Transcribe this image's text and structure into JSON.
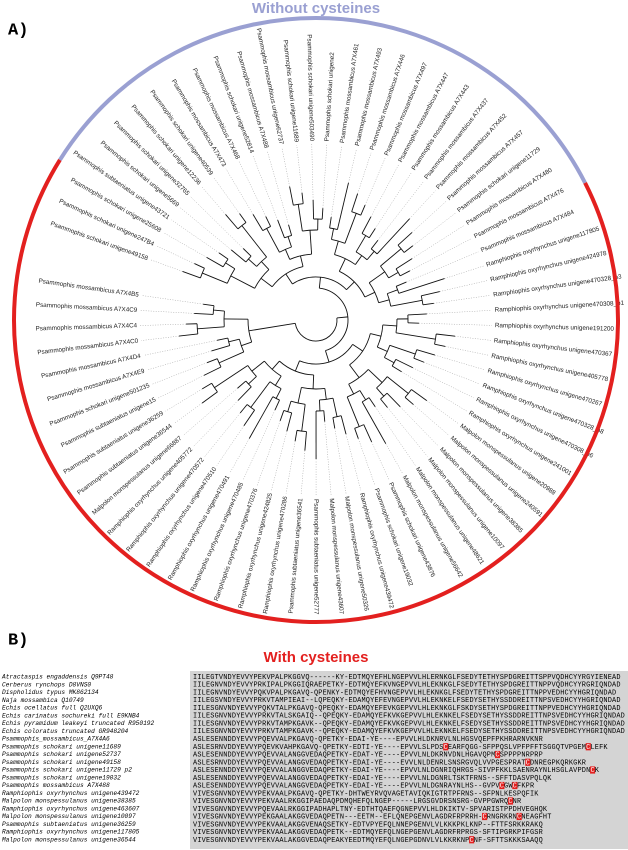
{
  "panel_a": {
    "label": "A)",
    "top_group": "Without cysteines",
    "bottom_group": "With cysteines",
    "leaves": [
      "Psammophis schokari unigene49158",
      "Psammophis schokari unigene247B4",
      "Psammophis schokari unigene25608",
      "Psammophis subtaeniatus unigene43721",
      "Psammophis schokari unigene5669",
      "Psammophis schokari unigene32765",
      "Psammophis schokari unigene12236",
      "Psammophis schokari unigene40539",
      "Psammophis mossambicus A7X473",
      "Psammophis mossambicus A7X468",
      "Psammophis schokari unigene52814",
      "Psammophis mossambicus A7X488",
      "Psammophis mossambicus unigene62737",
      "Psammophis schokari unigene11689",
      "Psammophis schokari unigene503490",
      "Psammophis schokari unigene2",
      "Psammophis mossambicus A7X461",
      "Psammophis mossambicus A7X493",
      "Psammophis mossambicus A7X446",
      "Psammophis mossambicus A7X497",
      "Psammophis mossambicus A7X447",
      "Psammophis mossambicus A7X443",
      "Psammophis mossambicus A7X437",
      "Psammophis mossambicus A7X452",
      "Psammophis mossambicus A7X457",
      "Psammophis schokari unigene11729",
      "Psammophis mossambicus A7X480",
      "Psammophis mossambicus A7X476",
      "Psammophis mossambicus A7X484",
      "Ramphiophis oxyrhynchus unigene117805",
      "Ramphiophis oxyrhynchus unigene424978",
      "Ramphiophis oxyrhynchus unigene470328_p3",
      "Ramphiophis oxyrhynchus unigene470308_p1",
      "Ramphiophis oxyrhynchus unigene191200",
      "Ramphiophis oxyrhynchus unigene470367",
      "Ramphiophis oxyrhynchus unigene405778",
      "Ramphiophis oxyrhynchus unigene470267",
      "Ramphiophis oxyrhynchus unigene470328_p8",
      "Ramphiophis oxyrhynchus unigene470308_p6",
      "Ramphiophis oxyrhynchus unigene241001",
      "Malpolon monspessulanus unigene20988",
      "Malpolon monspessulanus unigene240591",
      "Malpolon monspessulanus unigene38385",
      "Malpolon monspessulanus unigene10097",
      "Malpolon monspessulanus unigene48621",
      "Malpolon monspessulanus unigene56642",
      "Psammophis schokari unigene43876",
      "Psammophis schokari unigene19032",
      "Ramphiophis oxyrhynchus unigene439472",
      "Malpolon monspessulanus unigene50326",
      "Malpolon monspessulanus unigene43607",
      "Psammophis subtaeniatus unigene52777",
      "Psammophis subtaeniatus unigene36541",
      "Ramphiophis oxyrhynchus unigene470286",
      "Ramphiophis oxyrhynchus unigene424825",
      "Ramphiophis oxyrhynchus unigene470376",
      "Ramphiophis oxyrhynchus unigene470485",
      "Ramphiophis oxyrhynchus unigene470491",
      "Ramphiophis oxyrhynchus unigene470510",
      "Ramphiophis oxyrhynchus unigene470572",
      "Ramphiophis oxyrhynchus unigene405772",
      "Malpolon monspessulanus unigene66887",
      "Psammophis subtaeniatus unigene36544",
      "Psammophis subtaeniatus unigene36259",
      "Psammophis subtaeniatus unigene15",
      "Psammophis schokari unigene501235",
      "Psammophis mossambicus A7X4E9",
      "Psammophis mossambicus A7X4D4",
      "Psammophis mossambicus A7X4C0",
      "Psammophis mossambicus A7X4C4",
      "Psammophis mossambicus A7X4C9",
      "Psammophis mossambicus A7X4B5"
    ]
  },
  "panel_b": {
    "label": "B)",
    "rows": [
      {
        "name": "Atractaspis engaddensis Q9PT48",
        "sequence": "IILEGTVNDYEVVYPEKVPALPKGGVQ------KY-EDTMQYEFHLNGEPVVLHLERNKGLFSEDYTETHYSPDGREITTSPPVQDHCYYRGYIENEAD"
      },
      {
        "name": "Cerberus rynchops D8VNS0",
        "sequence": "IILEGNVNDYEVVYPRKIPALPKGGIQRAEPETKY-EDTMQYEFKVNGEPVVLHLEKNKGLFSEDYTETHYSPDGREITTNPPVQDHCYYRGRIQNDAD"
      },
      {
        "name": "Dispholidus typus MK862134",
        "sequence": "IILEGNVNDYEVVYPQKVPALPKGAVQ-QPENKY-EDTMQYEFHVNGEPVVLHLEKNKGLFSEDYTETHYSPDGREITTNPPVEDHCYYHGRIQNDAD"
      },
      {
        "name": "Naja mossambica Q10749",
        "sequence": "IILEGSVNDYEVVYPRKVTAMPIEAI--LQPEQKY-EDAMQYEFEVNGEPVVLHLEKNKELFSEDYSETHYSSDDREITTNPSVEDHCYYHGRIQNDAD"
      },
      {
        "name": "Echis ocellatus full Q2UXQ6",
        "sequence": "IILESGNVNDYEVVYPQKVTALPKGAVQ-QPEQKY-EDAMQYEFEVKGEPVVLHLEKNKGLFSKDYSETHYSPDGREITTNPPVEDHCYYHGRIQNDAD"
      },
      {
        "name": "Echis carinatus sochureki full E9KNB4",
        "sequence": "IILESGNVNDYEVVYPRKVTALSKGAIQ--QPEQKY-EDAMQYEFKVKGEPVVLHLEKNKELFSEDYSETHYSSDDREITTNPSVEDHCYYHGRIQNDAD"
      },
      {
        "name": "Echis pyramidum leakeyi truncated R950192",
        "sequence": "IILESGNVNDYEVVYPRKVTAMPKGAVK--QPEQKY-EDAMQYEFKVKGEPVVLHLEKNKELFSEDYSETHYSSDDREITTNPSVEDHCYYHGRIQNDAD"
      },
      {
        "name": "Echis coloratus truncated GR948204",
        "sequence": "IILESGNVNDYEVVYPRKVTAMPKGAVK--QPEQKY-EDAMQYEFKVKGEPVVLHLEKNKELFSEDYSETHYSSDDREITTNPSVEDHCYYHGRIQNDAD"
      },
      {
        "name": "Psammophis_mossambicus_A7X4A6",
        "sequence": "ASLESENNDDYEVVYPQEVVALPKGAVQ-QPETKY-EDAI-YE----EPVVLHLDKNRVLNLHGSVQEPFPKHRARNVKNR"
      },
      {
        "name": "Psammophis schokari unigene11689",
        "sequence": "ASLESRNVDDYEVVYPQEVKVAHPKGAVQ-QPETKY-EDTI-YE----EPVVLSLPDSCEARFQGG-SFPPQSLVPFPFFTSGGQTVPGEMCLEFK"
      },
      {
        "name": "Psammophis schokari unigene52737",
        "sequence": "ASLESENNDDYEVVYPQEVVALANGGVEDAQPETKY-EDAT-YE----EPVVLNLDKRNVDNLHGAVQPMCSPPPPNRPRP"
      },
      {
        "name": "Psammophis schokari unigene49158",
        "sequence": "ASLESRNVDDYEVVYPQEVVALANGGVEDAQPETKY-EDAI-YE----EVVLNLDENRLSNSRGVQLVVPGESPRATCDNREGPKQRKGKR"
      },
      {
        "name": "Psammophis schokari unigene11729 p2",
        "sequence": "ASLESENNDDYEVVYPQEVVALANGGVEDAQPETKY-EDAI-YE----EPVVLNLDGNRIQHRGS-SIVPFKKLSAENRAYNLHSGLAVPDNCK"
      },
      {
        "name": "Psammophis schokari unigene19032",
        "sequence": "ASLESENNDDYEVVYPQEVVALANGGVEDAQPETKY-EDAI-YE----EPVVLNLDGNRLTSKTFRNS--SFFTDASVPQLQK"
      },
      {
        "name": "Psammophis mossambicus A7X488",
        "sequence": "ASLESENNDDYEVVYPQEVVALANGGVEDAQPETKY-EDAI-YE----EPVVLNLDGNRAYNLHS--GVPVCGWCFKPR"
      },
      {
        "name": "Ramphiophis oxyrhynchus unigene439472",
        "sequence": "VIVESGNVNDYEVVYPEKVAALPKGAVQ-QPETKY-DHTWEYRVQVAGETAVIQKIGTRTPFRNS--SFPNLKESPQFIK"
      },
      {
        "name": "Malpolon monspessulanus unigene38385",
        "sequence": "VIVESGNVNDYEVVYPEKVAALRKGGIPAEDAQPDMQHEFQLNGEP-----LRGSGVDRSNSRG-GVPPGWRQCNR"
      },
      {
        "name": "Ramphiophis oxyrhynchus unigene463607",
        "sequence": "VIVESGNVNDYEVVYPQEVAALRKGGIPADHAPLTNY-EDTHTQAEFQGNEPVVLHLDKIKTV-SPVARISTPPDHVEGHQK"
      },
      {
        "name": "Malpolon monspessulanus unigene10097",
        "sequence": "VIVESGNVNDYEVVYPEKGAALAKGGVEDAQPETN---EETM--EFLQNEPGENVLAGDRFRPRRH-CRNGRKRNCNEAGFHT"
      },
      {
        "name": "Psammophis subtaeniatus unigene36259",
        "sequence": "VIVESGNVNDYEVVYPEKVAALAKGGVENAQSETKY-EDTVPYEFQLNNEPGENVLVLKKKPKLKNP--FTTFSRKKRAKQ"
      },
      {
        "name": "Ramphiophis oxyrhynchus unigene117805",
        "sequence": "VIVESGNVNDYEVVYPEKVAALAKGGVEDAQPETK--EDTMQYEFQLNGEPGENVLAGDRFRPRGS-SFTIPGRKPIFGSR"
      },
      {
        "name": "Malpolon monspessulanus unigene36544",
        "sequence": "VIVESGNVNDYEVVYPEKVAALAKGGVEDAQPEAKYEEDTMQYEFQLNGEPGDNVLVLKKRKNPCNF-SFTTSKKKSAAQQ"
      }
    ]
  }
}
